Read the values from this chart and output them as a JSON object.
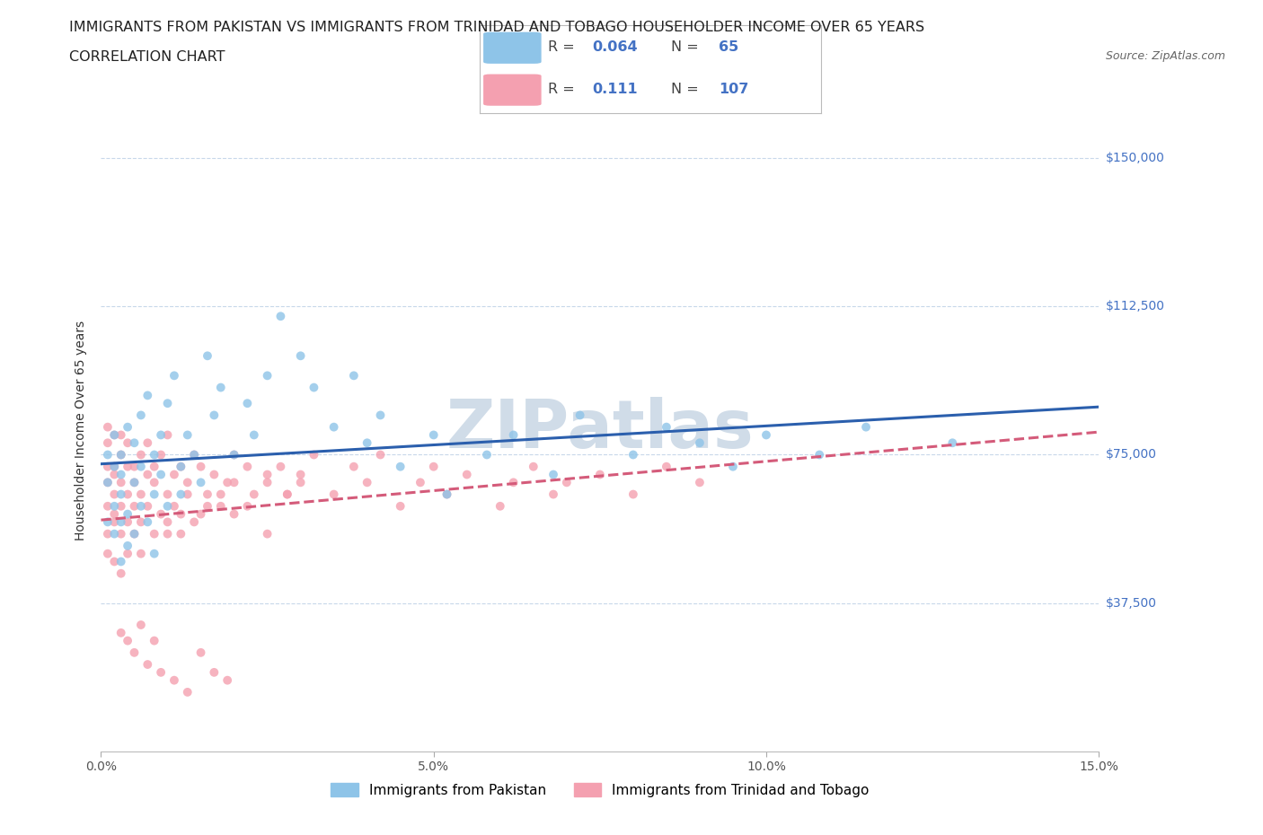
{
  "title_line1": "IMMIGRANTS FROM PAKISTAN VS IMMIGRANTS FROM TRINIDAD AND TOBAGO HOUSEHOLDER INCOME OVER 65 YEARS",
  "title_line2": "CORRELATION CHART",
  "source_text": "Source: ZipAtlas.com",
  "ylabel": "Householder Income Over 65 years",
  "xlim": [
    0.0,
    0.15
  ],
  "ylim": [
    0,
    162500
  ],
  "yticks": [
    0,
    37500,
    75000,
    112500,
    150000
  ],
  "ytick_labels": [
    "",
    "$37,500",
    "$75,000",
    "$112,500",
    "$150,000"
  ],
  "xticks": [
    0.0,
    0.05,
    0.1,
    0.15
  ],
  "xtick_labels": [
    "0.0%",
    "5.0%",
    "10.0%",
    "15.0%"
  ],
  "pakistan_color": "#8ec4e8",
  "trinidad_color": "#f4a0b0",
  "pakistan_R": 0.064,
  "pakistan_N": 65,
  "trinidad_R": 0.111,
  "trinidad_N": 107,
  "pakistan_trend_color": "#2b5fad",
  "trinidad_trend_color": "#d45b7a",
  "background_color": "#ffffff",
  "grid_color": "#c8d8ea",
  "watermark": "ZIPatlas",
  "watermark_color": "#d0dce8",
  "title_fontsize": 11.5,
  "axis_label_fontsize": 10,
  "tick_fontsize": 10,
  "pakistan_x": [
    0.001,
    0.001,
    0.001,
    0.002,
    0.002,
    0.002,
    0.002,
    0.003,
    0.003,
    0.003,
    0.003,
    0.003,
    0.004,
    0.004,
    0.004,
    0.005,
    0.005,
    0.005,
    0.006,
    0.006,
    0.006,
    0.007,
    0.007,
    0.008,
    0.008,
    0.008,
    0.009,
    0.009,
    0.01,
    0.01,
    0.011,
    0.012,
    0.012,
    0.013,
    0.014,
    0.015,
    0.016,
    0.017,
    0.018,
    0.02,
    0.022,
    0.023,
    0.025,
    0.027,
    0.03,
    0.032,
    0.035,
    0.038,
    0.04,
    0.042,
    0.045,
    0.05,
    0.052,
    0.058,
    0.062,
    0.068,
    0.072,
    0.08,
    0.085,
    0.09,
    0.095,
    0.1,
    0.108,
    0.115,
    0.128
  ],
  "pakistan_y": [
    68000,
    58000,
    75000,
    62000,
    72000,
    55000,
    80000,
    65000,
    70000,
    58000,
    48000,
    75000,
    60000,
    82000,
    52000,
    68000,
    78000,
    55000,
    72000,
    62000,
    85000,
    58000,
    90000,
    65000,
    75000,
    50000,
    70000,
    80000,
    62000,
    88000,
    95000,
    72000,
    65000,
    80000,
    75000,
    68000,
    100000,
    85000,
    92000,
    75000,
    88000,
    80000,
    95000,
    110000,
    100000,
    92000,
    82000,
    95000,
    78000,
    85000,
    72000,
    80000,
    65000,
    75000,
    80000,
    70000,
    85000,
    75000,
    82000,
    78000,
    72000,
    80000,
    75000,
    82000,
    78000
  ],
  "trinidad_x": [
    0.001,
    0.001,
    0.001,
    0.001,
    0.001,
    0.001,
    0.001,
    0.002,
    0.002,
    0.002,
    0.002,
    0.002,
    0.002,
    0.002,
    0.003,
    0.003,
    0.003,
    0.003,
    0.003,
    0.003,
    0.004,
    0.004,
    0.004,
    0.004,
    0.004,
    0.005,
    0.005,
    0.005,
    0.005,
    0.006,
    0.006,
    0.006,
    0.006,
    0.007,
    0.007,
    0.007,
    0.008,
    0.008,
    0.008,
    0.009,
    0.009,
    0.01,
    0.01,
    0.01,
    0.011,
    0.011,
    0.012,
    0.012,
    0.013,
    0.013,
    0.014,
    0.015,
    0.015,
    0.016,
    0.017,
    0.018,
    0.019,
    0.02,
    0.02,
    0.022,
    0.023,
    0.025,
    0.025,
    0.027,
    0.028,
    0.03,
    0.032,
    0.035,
    0.038,
    0.04,
    0.042,
    0.045,
    0.048,
    0.05,
    0.052,
    0.055,
    0.06,
    0.062,
    0.065,
    0.068,
    0.07,
    0.075,
    0.08,
    0.085,
    0.09,
    0.01,
    0.012,
    0.014,
    0.016,
    0.018,
    0.02,
    0.022,
    0.025,
    0.028,
    0.03,
    0.003,
    0.004,
    0.005,
    0.006,
    0.007,
    0.008,
    0.009,
    0.011,
    0.013,
    0.015,
    0.017,
    0.019
  ],
  "trinidad_y": [
    72000,
    62000,
    55000,
    68000,
    78000,
    50000,
    82000,
    65000,
    58000,
    72000,
    48000,
    80000,
    60000,
    70000,
    75000,
    62000,
    55000,
    68000,
    45000,
    80000,
    72000,
    58000,
    65000,
    50000,
    78000,
    68000,
    72000,
    55000,
    62000,
    75000,
    58000,
    65000,
    50000,
    70000,
    62000,
    78000,
    68000,
    55000,
    72000,
    60000,
    75000,
    65000,
    58000,
    80000,
    70000,
    62000,
    72000,
    55000,
    68000,
    65000,
    75000,
    60000,
    72000,
    65000,
    70000,
    62000,
    68000,
    75000,
    60000,
    72000,
    65000,
    68000,
    55000,
    72000,
    65000,
    70000,
    75000,
    65000,
    72000,
    68000,
    75000,
    62000,
    68000,
    72000,
    65000,
    70000,
    62000,
    68000,
    72000,
    65000,
    68000,
    70000,
    65000,
    72000,
    68000,
    55000,
    60000,
    58000,
    62000,
    65000,
    68000,
    62000,
    70000,
    65000,
    68000,
    30000,
    28000,
    25000,
    32000,
    22000,
    28000,
    20000,
    18000,
    15000,
    25000,
    20000,
    18000
  ]
}
